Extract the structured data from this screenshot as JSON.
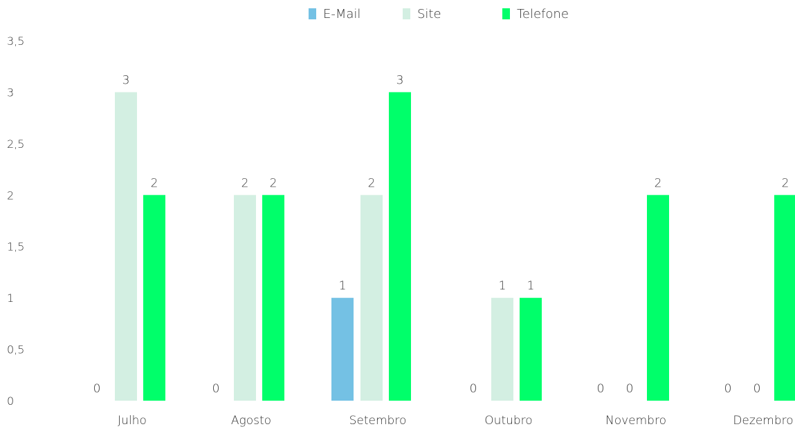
{
  "chart_data": {
    "type": "bar",
    "categories": [
      "Julho",
      "Agosto",
      "Setembro",
      "Outubro",
      "Novembro",
      "Dezembro"
    ],
    "series": [
      {
        "name": "E-Mail",
        "color": "#74c1e4",
        "values": [
          0,
          0,
          1,
          0,
          0,
          0
        ]
      },
      {
        "name": "Site",
        "color": "#d3efe2",
        "values": [
          3,
          2,
          2,
          1,
          0,
          0
        ]
      },
      {
        "name": "Telefone",
        "color": "#00ff6a",
        "values": [
          2,
          2,
          3,
          1,
          2,
          2
        ]
      }
    ],
    "ylim": [
      0,
      3.5
    ],
    "yticks": [
      "0",
      "0,5",
      "1",
      "1,5",
      "2",
      "2,5",
      "3",
      "3,5"
    ],
    "legend": "top-center",
    "grid": false
  }
}
